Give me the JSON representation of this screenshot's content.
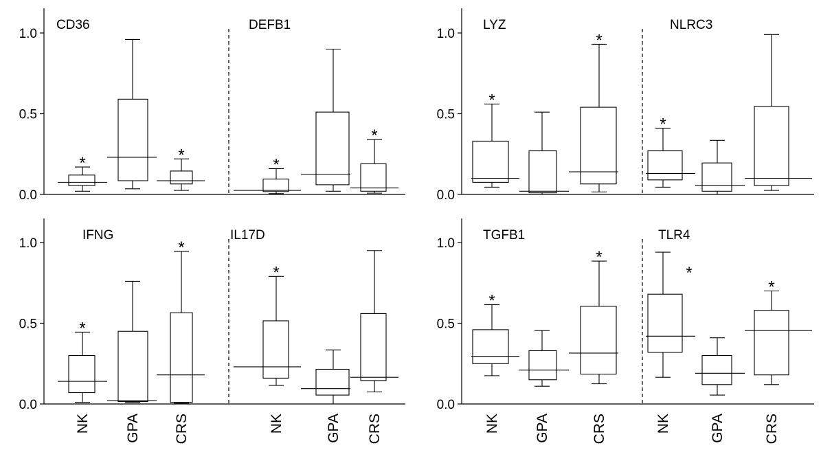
{
  "chart_data": {
    "type": "box",
    "categories": [
      "NK",
      "GPA",
      "CRS"
    ],
    "ylim": [
      0,
      1.15
    ],
    "yticks": [
      "0.0",
      "0.5",
      "1.0"
    ],
    "panels": [
      {
        "genes": [
          {
            "name": "CD36",
            "stars": [
              "NK",
              "CRS"
            ],
            "boxes": [
              {
                "category": "NK",
                "min": 0.02,
                "q1": 0.055,
                "median": 0.075,
                "q3": 0.12,
                "max": 0.17
              },
              {
                "category": "GPA",
                "min": 0.035,
                "q1": 0.085,
                "median": 0.23,
                "q3": 0.59,
                "max": 0.96
              },
              {
                "category": "CRS",
                "min": 0.025,
                "q1": 0.065,
                "median": 0.085,
                "q3": 0.145,
                "max": 0.22
              }
            ]
          },
          {
            "name": "DEFB1",
            "stars": [
              "NK",
              "CRS"
            ],
            "boxes": [
              {
                "category": "NK",
                "min": 0.005,
                "q1": 0.018,
                "median": 0.025,
                "q3": 0.095,
                "max": 0.16
              },
              {
                "category": "GPA",
                "min": 0.02,
                "q1": 0.06,
                "median": 0.125,
                "q3": 0.51,
                "max": 0.9
              },
              {
                "category": "CRS",
                "min": 0.008,
                "q1": 0.02,
                "median": 0.04,
                "q3": 0.19,
                "max": 0.34
              }
            ]
          }
        ]
      },
      {
        "genes": [
          {
            "name": "LYZ",
            "stars": [
              "NK",
              "CRS"
            ],
            "boxes": [
              {
                "category": "NK",
                "min": 0.045,
                "q1": 0.075,
                "median": 0.1,
                "q3": 0.33,
                "max": 0.56
              },
              {
                "category": "GPA",
                "min": 0.0,
                "q1": 0.01,
                "median": 0.02,
                "q3": 0.27,
                "max": 0.51
              },
              {
                "category": "CRS",
                "min": 0.015,
                "q1": 0.065,
                "median": 0.14,
                "q3": 0.54,
                "max": 0.93
              }
            ]
          },
          {
            "name": "NLRC3",
            "stars": [
              "NK"
            ],
            "boxes": [
              {
                "category": "NK",
                "min": 0.045,
                "q1": 0.09,
                "median": 0.13,
                "q3": 0.27,
                "max": 0.41
              },
              {
                "category": "GPA",
                "min": 0.0,
                "q1": 0.02,
                "median": 0.055,
                "q3": 0.195,
                "max": 0.335
              },
              {
                "category": "CRS",
                "min": 0.025,
                "q1": 0.055,
                "median": 0.1,
                "q3": 0.545,
                "max": 0.99
              }
            ]
          }
        ]
      },
      {
        "genes": [
          {
            "name": "IFNG",
            "stars": [
              "NK",
              "CRS"
            ],
            "boxes": [
              {
                "category": "NK",
                "min": 0.01,
                "q1": 0.07,
                "median": 0.14,
                "q3": 0.3,
                "max": 0.445
              },
              {
                "category": "GPA",
                "min": 0.01,
                "q1": 0.015,
                "median": 0.02,
                "q3": 0.45,
                "max": 0.76
              },
              {
                "category": "CRS",
                "min": 0.005,
                "q1": 0.01,
                "median": 0.18,
                "q3": 0.565,
                "max": 0.945
              }
            ]
          },
          {
            "name": "IL17D",
            "stars": [
              "NK"
            ],
            "boxes": [
              {
                "category": "NK",
                "min": 0.115,
                "q1": 0.16,
                "median": 0.23,
                "q3": 0.515,
                "max": 0.79
              },
              {
                "category": "GPA",
                "min": 0.0,
                "q1": 0.055,
                "median": 0.095,
                "q3": 0.215,
                "max": 0.335
              },
              {
                "category": "CRS",
                "min": 0.075,
                "q1": 0.145,
                "median": 0.165,
                "q3": 0.56,
                "max": 0.95
              }
            ]
          }
        ]
      },
      {
        "genes": [
          {
            "name": "TGFB1",
            "stars": [
              "NK",
              "CRS"
            ],
            "boxes": [
              {
                "category": "NK",
                "min": 0.175,
                "q1": 0.25,
                "median": 0.295,
                "q3": 0.46,
                "max": 0.615
              },
              {
                "category": "GPA",
                "min": 0.11,
                "q1": 0.15,
                "median": 0.21,
                "q3": 0.33,
                "max": 0.455
              },
              {
                "category": "CRS",
                "min": 0.125,
                "q1": 0.185,
                "median": 0.315,
                "q3": 0.605,
                "max": 0.885
              }
            ]
          },
          {
            "name": "TLR4",
            "stars": [
              "NK",
              "CRS"
            ],
            "boxes": [
              {
                "category": "NK",
                "min": 0.165,
                "q1": 0.32,
                "median": 0.42,
                "q3": 0.68,
                "max": 0.94
              },
              {
                "category": "GPA",
                "min": 0.055,
                "q1": 0.12,
                "median": 0.19,
                "q3": 0.3,
                "max": 0.41
              },
              {
                "category": "CRS",
                "min": 0.12,
                "q1": 0.18,
                "median": 0.455,
                "q3": 0.58,
                "max": 0.7
              }
            ]
          }
        ]
      }
    ]
  },
  "star_symbol": "*"
}
